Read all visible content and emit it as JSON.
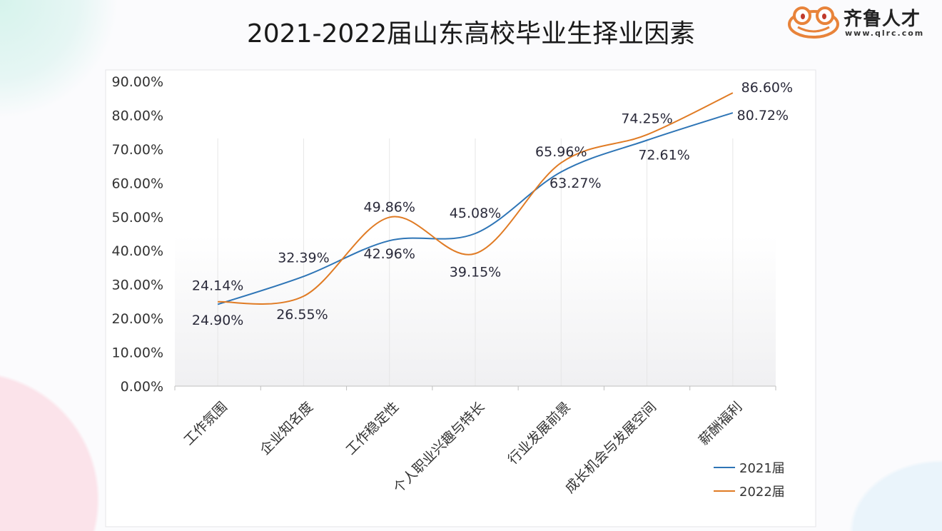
{
  "chart_data": {
    "type": "line",
    "title": "2021-2022届山东高校毕业生择业因素",
    "categories": [
      "工作氛围",
      "企业知名度",
      "工作稳定性",
      "个人职业兴趣与特长",
      "行业发展前景",
      "成长机会与发展空间",
      "薪酬福利"
    ],
    "series": [
      {
        "name": "2021届",
        "color": "#2e75b6",
        "values": [
          24.14,
          32.39,
          42.96,
          45.08,
          63.27,
          72.61,
          80.72
        ],
        "labels": [
          "24.14%",
          "32.39%",
          "42.96%",
          "45.08%",
          "63.27%",
          "72.61%",
          "80.72%"
        ]
      },
      {
        "name": "2022届",
        "color": "#e07b24",
        "values": [
          24.9,
          26.55,
          49.86,
          39.15,
          65.96,
          74.25,
          86.6
        ],
        "labels": [
          "24.90%",
          "26.55%",
          "49.86%",
          "39.15%",
          "65.96%",
          "74.25%",
          "86.60%"
        ]
      }
    ],
    "ylim": [
      0,
      90
    ],
    "yticks": [
      "0.00%",
      "10.00%",
      "20.00%",
      "30.00%",
      "40.00%",
      "50.00%",
      "60.00%",
      "70.00%",
      "80.00%",
      "90.00%"
    ],
    "grid": "vertical",
    "smooth": true,
    "legend": "bottom-right"
  },
  "logo": {
    "name": "齐鲁人才",
    "url": "www.qlrc.com"
  }
}
